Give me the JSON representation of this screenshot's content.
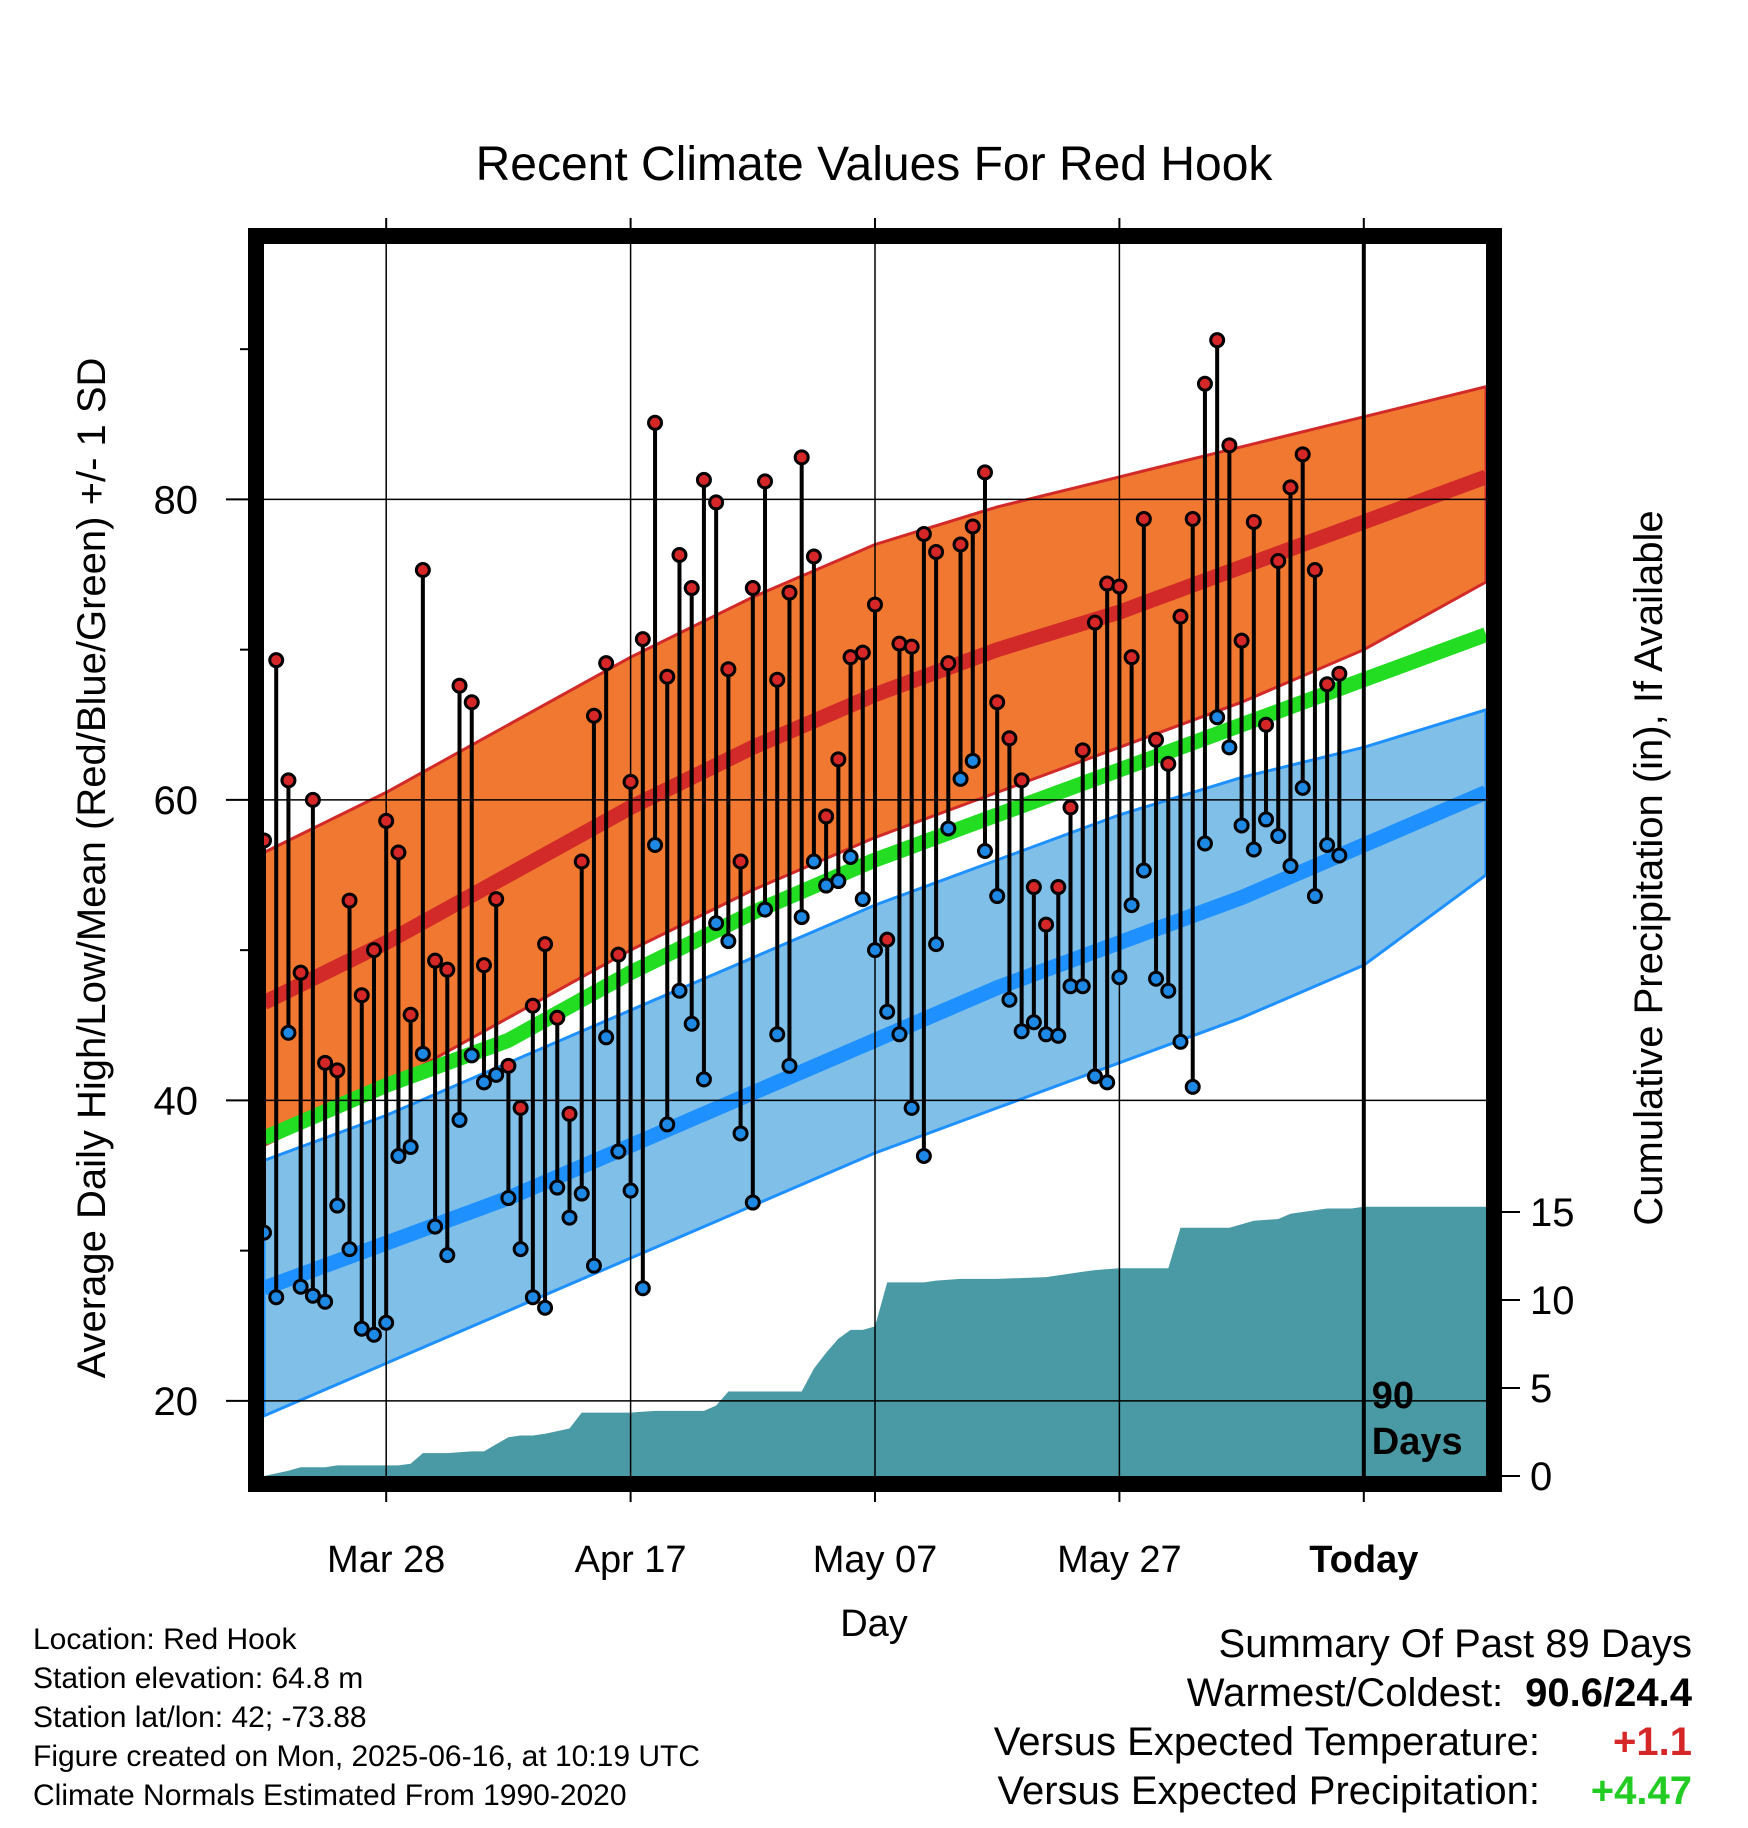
{
  "chart_data": {
    "type": "line",
    "title": "Recent Climate Values For Red Hook",
    "xlabel": "Day",
    "ylabel": "Average Daily High/Low/Mean (Red/Blue/Green) +/- 1 SD",
    "y2label": "Cumulative Precipitation (in), If Available",
    "xlim": [
      -10,
      90
    ],
    "ylim": [
      15,
      97
    ],
    "y2lim": [
      0,
      70
    ],
    "x_ticks": [
      {
        "day": 0,
        "label": "Mar 28"
      },
      {
        "day": 20,
        "label": "Apr 17"
      },
      {
        "day": 40,
        "label": "May 07"
      },
      {
        "day": 60,
        "label": "May 27"
      },
      {
        "day": 80,
        "label": "Today"
      }
    ],
    "y_ticks": [
      "20",
      "40",
      "60",
      "80"
    ],
    "y2_ticks": [
      "0",
      "5",
      "10",
      "15"
    ],
    "today_label": "90\nDays",
    "normals": {
      "x": [
        -10,
        0,
        10,
        20,
        30,
        40,
        50,
        60,
        70,
        80,
        90
      ],
      "high_mean": [
        46.5,
        50.5,
        55.0,
        59.5,
        63.5,
        67.0,
        70.0,
        72.5,
        75.5,
        78.5,
        81.5
      ],
      "high_upper": [
        56.5,
        60.5,
        65.0,
        69.5,
        73.5,
        77.0,
        79.5,
        81.5,
        83.5,
        85.5,
        87.5
      ],
      "high_lower": [
        37.0,
        41.0,
        45.5,
        50.0,
        54.0,
        57.5,
        60.5,
        63.5,
        66.5,
        70.0,
        74.5
      ],
      "low_mean": [
        27.5,
        30.5,
        33.5,
        37.0,
        40.5,
        44.0,
        47.5,
        50.5,
        53.5,
        57.0,
        60.5
      ],
      "low_upper": [
        36.0,
        39.0,
        42.5,
        46.0,
        49.5,
        53.0,
        56.0,
        59.0,
        61.5,
        63.5,
        66.0
      ],
      "low_lower": [
        19.0,
        22.5,
        26.0,
        29.5,
        33.0,
        36.5,
        39.5,
        42.5,
        45.5,
        49.0,
        55.0
      ],
      "mean": [
        37.5,
        41.0,
        44.0,
        48.5,
        52.5,
        56.0,
        59.0,
        62.0,
        65.0,
        68.0,
        71.0
      ]
    },
    "observations": {
      "day": [
        -10,
        -9,
        -8,
        -7,
        -6,
        -5,
        -4,
        -3,
        -2,
        -1,
        0,
        1,
        2,
        3,
        4,
        5,
        6,
        7,
        8,
        9,
        10,
        11,
        12,
        13,
        14,
        15,
        16,
        17,
        18,
        19,
        20,
        21,
        22,
        23,
        24,
        25,
        26,
        27,
        28,
        29,
        30,
        31,
        32,
        33,
        34,
        35,
        36,
        37,
        38,
        39,
        40,
        41,
        42,
        43,
        44,
        45,
        46,
        47,
        48,
        49,
        50,
        51,
        52,
        53,
        54,
        55,
        56,
        57,
        58,
        59,
        60,
        61,
        62,
        63,
        64,
        65,
        66,
        67,
        68,
        69,
        70,
        71,
        72,
        73,
        74,
        75,
        76,
        77,
        78
      ],
      "high": [
        57.3,
        69.3,
        61.3,
        48.5,
        60.0,
        42.5,
        42.0,
        53.3,
        47.0,
        50.0,
        58.6,
        56.5,
        45.7,
        75.3,
        49.3,
        48.7,
        67.6,
        66.5,
        49.0,
        53.4,
        42.3,
        39.5,
        46.3,
        50.4,
        45.5,
        39.1,
        55.9,
        65.6,
        69.1,
        49.7,
        61.2,
        70.7,
        85.1,
        68.2,
        76.3,
        74.1,
        81.3,
        79.8,
        68.7,
        55.9,
        74.1,
        81.2,
        68.0,
        73.8,
        82.8,
        76.2,
        58.9,
        62.7,
        69.5,
        69.8,
        73.0,
        50.7,
        70.4,
        70.2,
        77.7,
        76.5,
        69.1,
        77.0,
        78.2,
        81.8,
        66.5,
        64.1,
        61.3,
        54.2,
        51.7,
        54.2,
        59.5,
        63.3,
        71.8,
        74.4,
        74.2,
        69.5,
        78.7,
        64.0,
        62.4,
        72.2,
        78.7,
        87.7,
        90.6,
        83.6,
        70.6,
        78.5,
        65.0,
        75.9,
        80.8,
        83.0,
        75.3,
        67.7,
        68.4
      ],
      "low": [
        31.2,
        26.9,
        44.5,
        27.6,
        27.0,
        26.6,
        33.0,
        30.1,
        24.8,
        24.4,
        25.2,
        36.3,
        36.9,
        43.1,
        31.6,
        29.7,
        38.7,
        43.0,
        41.2,
        41.7,
        33.5,
        30.1,
        26.9,
        26.2,
        34.2,
        32.2,
        33.8,
        29.0,
        44.2,
        36.6,
        34.0,
        27.5,
        57.0,
        38.4,
        47.3,
        45.1,
        41.4,
        51.8,
        50.6,
        37.8,
        33.2,
        52.7,
        44.4,
        42.3,
        52.2,
        55.9,
        54.3,
        54.6,
        56.2,
        53.4,
        50.0,
        45.9,
        44.4,
        39.5,
        36.3,
        50.4,
        58.1,
        61.4,
        62.6,
        56.6,
        53.6,
        46.7,
        44.6,
        45.2,
        44.4,
        44.3,
        47.6,
        47.6,
        41.6,
        41.2,
        48.2,
        53.0,
        55.3,
        48.1,
        47.3,
        43.9,
        40.9,
        57.1,
        65.5,
        63.5,
        58.3,
        56.7,
        58.7,
        57.6,
        55.6,
        60.8,
        53.6,
        57.0,
        56.3
      ]
    },
    "precipitation": {
      "day": [
        -10,
        -8,
        -7,
        -6,
        -5,
        -4,
        -3,
        -2,
        -1,
        1,
        2,
        3,
        5,
        7,
        8,
        9,
        10,
        11,
        12,
        13,
        15,
        16,
        18,
        20,
        22,
        24,
        26,
        27,
        28,
        29,
        31,
        34,
        35,
        36,
        37,
        38,
        39,
        40,
        41,
        42,
        43,
        44,
        45,
        47,
        50,
        54,
        57,
        58,
        60,
        63,
        64,
        65,
        66,
        67,
        69,
        71,
        73,
        74,
        75,
        76,
        77,
        78,
        79,
        80,
        90
      ],
      "cumulative": [
        0.0,
        0.3,
        0.5,
        0.5,
        0.5,
        0.6,
        0.6,
        0.6,
        0.6,
        0.6,
        0.7,
        1.3,
        1.3,
        1.4,
        1.4,
        1.8,
        2.2,
        2.3,
        2.3,
        2.4,
        2.7,
        3.6,
        3.6,
        3.6,
        3.7,
        3.7,
        3.7,
        4.0,
        4.8,
        4.8,
        4.8,
        4.8,
        6.1,
        7.0,
        7.8,
        8.3,
        8.3,
        8.5,
        11.0,
        11.0,
        11.0,
        11.0,
        11.1,
        11.2,
        11.2,
        11.3,
        11.6,
        11.7,
        11.8,
        11.8,
        11.8,
        14.1,
        14.1,
        14.1,
        14.1,
        14.5,
        14.6,
        14.9,
        15.0,
        15.1,
        15.2,
        15.2,
        15.2,
        15.3,
        15.3
      ]
    },
    "colors": {
      "high_band": "#f07830",
      "high_line": "#d22a28",
      "low_band": "#80c0e8",
      "low_line": "#1e90ff",
      "mean_line": "#22dd22",
      "precip": "#4a9aa5",
      "high_dot": "#d62728",
      "low_dot": "#1e88e5"
    },
    "grid": true
  },
  "info": {
    "location": "Location: Red Hook",
    "elevation": "Station elevation: 64.8 m",
    "latlon": "Station lat/lon: 42; -73.88",
    "created": "Figure created on Mon, 2025-06-16, at 10:19 UTC",
    "normals": "Climate Normals Estimated From 1990-2020"
  },
  "summary": {
    "title": "Summary Of Past 89 Days",
    "warm_cold_label": "Warmest/Coldest:",
    "warm_cold_value": "90.6/24.4",
    "temp_label": "Versus Expected Temperature:",
    "temp_value": "+1.1",
    "precip_label": "Versus Expected Precipitation:",
    "precip_value": "+4.47"
  }
}
